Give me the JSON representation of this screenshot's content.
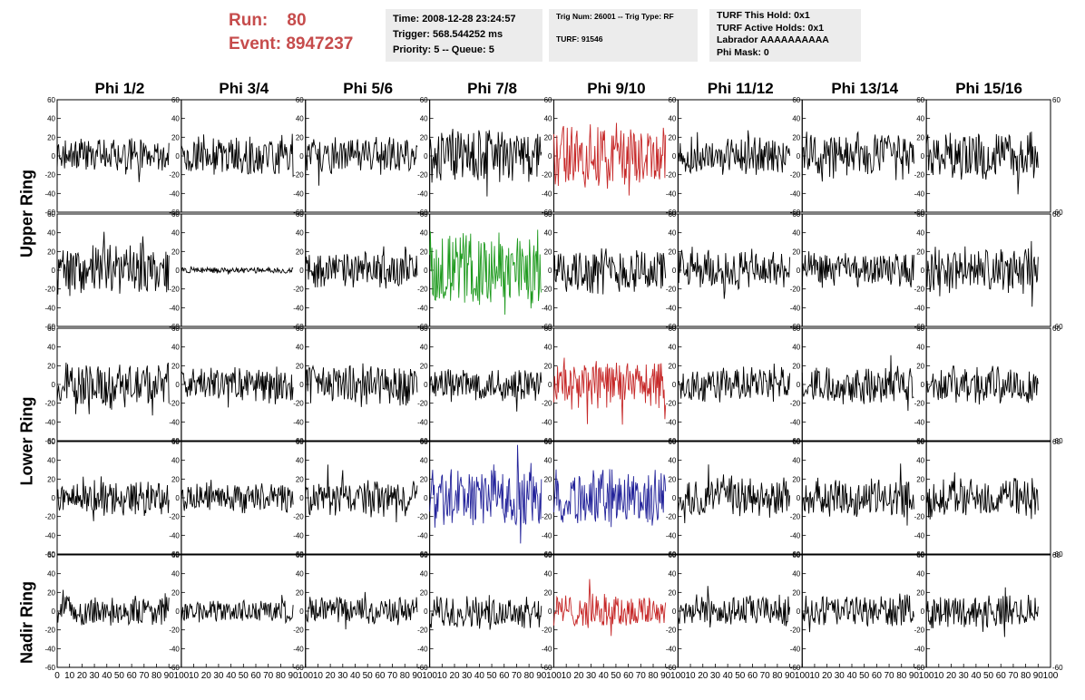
{
  "header": {
    "run_label": "Run:",
    "run_value": "80",
    "event_label": "Event:",
    "event_value": "8947237",
    "time": "Time: 2008-12-28 23:24:57",
    "trigger": "Trigger: 568.544252 ms",
    "priority": "Priority: 5 -- Queue: 5",
    "trig_num": "Trig Num: 26001 -- Trig Type: RF",
    "turf": "TURF: 91546",
    "turf_hold": "TURF This Hold: 0x1",
    "turf_active": "TURF Active Holds: 0x1",
    "labrador": "Labrador AAAAAAAAAA",
    "phi_mask": "Phi Mask: 0"
  },
  "chart_data": {
    "type": "line",
    "columns": [
      "Phi 1/2",
      "Phi 3/4",
      "Phi 5/6",
      "Phi 7/8",
      "Phi 9/10",
      "Phi 11/12",
      "Phi 13/14",
      "Phi 15/16"
    ],
    "ring_labels": [
      "Upper Ring",
      "Lower Ring",
      "Nadir Ring"
    ],
    "rows": 5,
    "ylim": [
      -60,
      60
    ],
    "xlim": [
      0,
      100
    ],
    "y_ticks": [
      -60,
      -40,
      -20,
      0,
      20,
      40,
      60
    ],
    "x_ticks": [
      0,
      10,
      20,
      30,
      40,
      50,
      60,
      70,
      80,
      90,
      100
    ],
    "colors": {
      "default": "#000000",
      "red": "#c62828",
      "green": "#1e9a1e",
      "blue": "#23239a"
    },
    "highlights": [
      {
        "row": 0,
        "col": 4,
        "color": "red"
      },
      {
        "row": 1,
        "col": 3,
        "color": "green"
      },
      {
        "row": 2,
        "col": 4,
        "color": "red"
      },
      {
        "row": 3,
        "col": 3,
        "color": "blue"
      },
      {
        "row": 3,
        "col": 4,
        "color": "blue"
      },
      {
        "row": 4,
        "col": 4,
        "color": "red"
      }
    ],
    "amplitudes": [
      [
        12,
        14,
        13,
        18,
        22,
        13,
        16,
        16
      ],
      [
        18,
        2,
        12,
        26,
        16,
        14,
        12,
        16
      ],
      [
        15,
        12,
        14,
        12,
        16,
        12,
        13,
        13
      ],
      [
        12,
        10,
        12,
        20,
        20,
        14,
        13,
        14
      ],
      [
        10,
        8,
        10,
        11,
        12,
        11,
        11,
        11
      ]
    ]
  }
}
